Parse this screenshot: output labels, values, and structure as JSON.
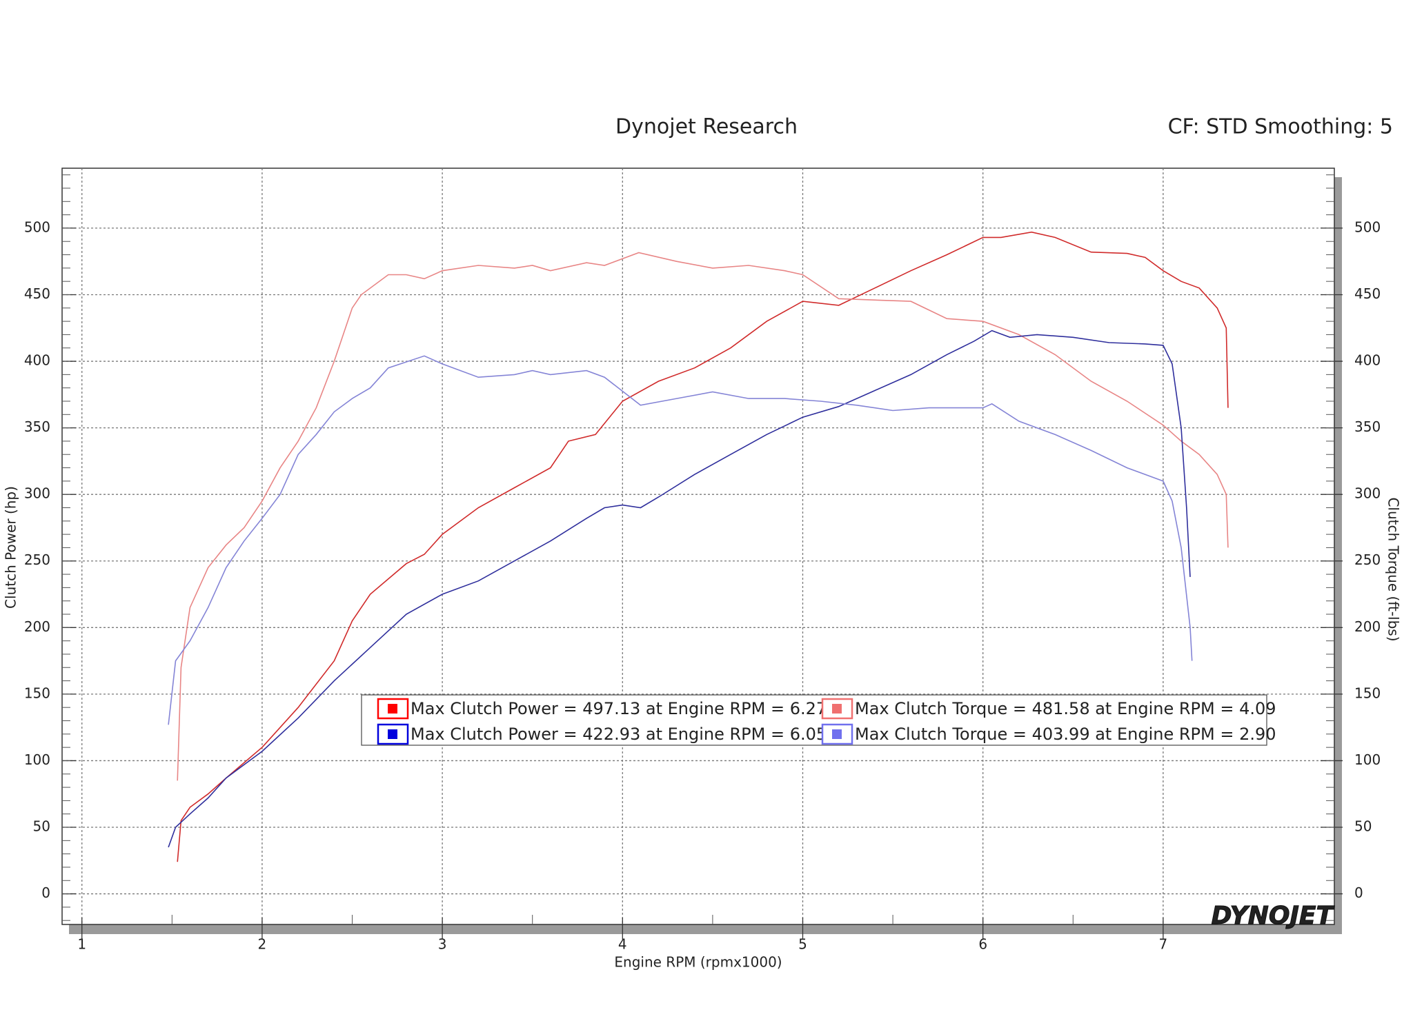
{
  "chart_data": {
    "type": "line",
    "title": "Dynojet Research",
    "subtitle": "CF: STD Smoothing: 5",
    "x_label": "Engine RPM (rpmx1000)",
    "y_label": "Clutch Power (hp)",
    "y2_label": "Clutch Torque (ft-lbs)",
    "logo": "DYNOJET",
    "xlim": [
      0.89,
      7.95
    ],
    "xticks": [
      1,
      2,
      3,
      4,
      5,
      6,
      7
    ],
    "ylim": [
      -23,
      545
    ],
    "yticks": [
      0,
      50,
      100,
      150,
      200,
      250,
      300,
      350,
      400,
      450,
      500
    ],
    "y2lim": [
      -23,
      545
    ],
    "y2ticks": [
      0,
      50,
      100,
      150,
      200,
      250,
      300,
      350,
      400,
      450,
      500
    ],
    "grid": true,
    "series": [
      {
        "name": "Max Clutch Power = 497.13 at Engine RPM = 6.27",
        "color": "#d02a2a",
        "swatch": "#ff0000",
        "axis": "y",
        "x": [
          1.53,
          1.55,
          1.6,
          1.7,
          1.8,
          2.0,
          2.2,
          2.4,
          2.5,
          2.6,
          2.8,
          2.9,
          3.0,
          3.2,
          3.4,
          3.6,
          3.7,
          3.85,
          4.0,
          4.2,
          4.4,
          4.6,
          4.8,
          5.0,
          5.2,
          5.4,
          5.6,
          5.8,
          6.0,
          6.1,
          6.27,
          6.4,
          6.6,
          6.8,
          6.9,
          7.0,
          7.1,
          7.2,
          7.3,
          7.35,
          7.36
        ],
        "values": [
          24,
          55,
          65,
          75,
          87,
          110,
          140,
          175,
          205,
          225,
          248,
          255,
          270,
          290,
          305,
          320,
          340,
          345,
          370,
          385,
          395,
          410,
          430,
          445,
          442,
          455,
          468,
          480,
          493,
          493,
          497,
          493,
          482,
          481,
          478,
          468,
          460,
          455,
          440,
          425,
          365
        ]
      },
      {
        "name": "Max Clutch Torque = 481.58 at Engine RPM = 4.09",
        "color": "#e88585",
        "swatch": "#f07070",
        "axis": "y2",
        "x": [
          1.53,
          1.55,
          1.6,
          1.7,
          1.8,
          1.9,
          2.0,
          2.1,
          2.2,
          2.3,
          2.4,
          2.5,
          2.55,
          2.7,
          2.8,
          2.9,
          3.0,
          3.2,
          3.4,
          3.5,
          3.6,
          3.8,
          3.9,
          4.09,
          4.3,
          4.5,
          4.7,
          4.9,
          5.0,
          5.2,
          5.4,
          5.6,
          5.8,
          6.0,
          6.2,
          6.4,
          6.6,
          6.8,
          7.0,
          7.1,
          7.2,
          7.3,
          7.35,
          7.36
        ],
        "values": [
          85,
          170,
          215,
          245,
          262,
          275,
          295,
          320,
          340,
          365,
          400,
          440,
          450,
          465,
          465,
          462,
          468,
          472,
          470,
          472,
          468,
          474,
          472,
          481.58,
          475,
          470,
          472,
          468,
          465,
          447,
          446,
          445,
          432,
          430,
          420,
          405,
          385,
          370,
          352,
          340,
          330,
          315,
          300,
          260
        ]
      },
      {
        "name": "Max Clutch Power = 422.93 at Engine RPM = 6.05",
        "color": "#2e2e9c",
        "swatch": "#0000dd",
        "axis": "y",
        "x": [
          1.48,
          1.52,
          1.6,
          1.7,
          1.8,
          2.0,
          2.2,
          2.4,
          2.6,
          2.8,
          3.0,
          3.2,
          3.4,
          3.6,
          3.8,
          3.9,
          4.0,
          4.1,
          4.2,
          4.4,
          4.6,
          4.8,
          5.0,
          5.2,
          5.4,
          5.6,
          5.8,
          5.95,
          6.05,
          6.15,
          6.3,
          6.5,
          6.7,
          6.9,
          7.0,
          7.05,
          7.1,
          7.13,
          7.15
        ],
        "values": [
          35,
          50,
          60,
          72,
          87,
          107,
          132,
          160,
          185,
          210,
          225,
          235,
          250,
          265,
          282,
          290,
          292,
          290,
          298,
          315,
          330,
          345,
          358,
          366,
          378,
          390,
          405,
          415,
          423,
          418,
          420,
          418,
          414,
          413,
          412,
          398,
          350,
          290,
          238
        ]
      },
      {
        "name": "Max Clutch Torque = 403.99 at Engine RPM = 2.90",
        "color": "#8484d6",
        "swatch": "#7070ee",
        "axis": "y2",
        "x": [
          1.48,
          1.52,
          1.6,
          1.7,
          1.8,
          1.9,
          2.0,
          2.1,
          2.2,
          2.3,
          2.4,
          2.5,
          2.6,
          2.7,
          2.9,
          3.0,
          3.2,
          3.4,
          3.5,
          3.6,
          3.8,
          3.9,
          4.1,
          4.3,
          4.5,
          4.7,
          4.9,
          5.1,
          5.3,
          5.5,
          5.7,
          6.0,
          6.05,
          6.2,
          6.4,
          6.6,
          6.8,
          7.0,
          7.05,
          7.1,
          7.15,
          7.16
        ],
        "values": [
          127,
          175,
          190,
          215,
          245,
          265,
          282,
          300,
          330,
          345,
          362,
          372,
          380,
          395,
          403.99,
          398,
          388,
          390,
          393,
          390,
          393,
          388,
          367,
          372,
          377,
          372,
          372,
          370,
          367,
          363,
          365,
          365,
          368,
          355,
          345,
          333,
          320,
          310,
          295,
          260,
          200,
          175
        ]
      }
    ]
  }
}
